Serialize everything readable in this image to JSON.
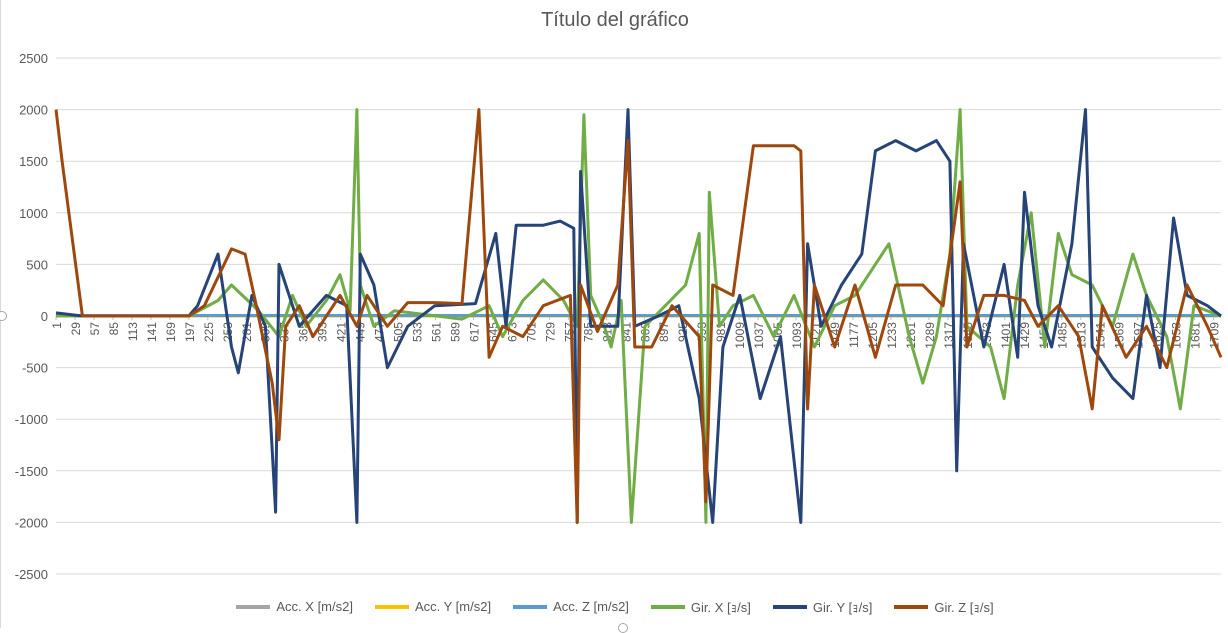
{
  "chart_data": {
    "type": "line",
    "title": "Título del gráfico",
    "xlabel": "",
    "ylabel": "",
    "ylim": [
      -2500,
      2500
    ],
    "y_ticks": [
      2500,
      2000,
      1500,
      1000,
      500,
      0,
      -500,
      -1000,
      -1500,
      -2000,
      -2500
    ],
    "x_range": [
      1,
      1720
    ],
    "x_tick_labels": [
      "1",
      "29",
      "57",
      "85",
      "113",
      "141",
      "169",
      "197",
      "225",
      "253",
      "281",
      "309",
      "337",
      "365",
      "393",
      "421",
      "449",
      "477",
      "505",
      "533",
      "561",
      "589",
      "617",
      "645",
      "673",
      "701",
      "729",
      "757",
      "785",
      "813",
      "841",
      "869",
      "897",
      "925",
      "953",
      "981",
      "1009",
      "1037",
      "1065",
      "1093",
      "1121",
      "1149",
      "1177",
      "1205",
      "1233",
      "1261",
      "1289",
      "1317",
      "1345",
      "1373",
      "1401",
      "1429",
      "1457",
      "1485",
      "1513",
      "1541",
      "1569",
      "1597",
      "1625",
      "1653",
      "1681",
      "1709"
    ],
    "grid": true,
    "legend_position": "bottom",
    "series": [
      {
        "name": "Acc. X [m/s2]",
        "color": "#a5a5a5",
        "points": [
          [
            1,
            0
          ],
          [
            1720,
            0
          ]
        ]
      },
      {
        "name": "Acc. Y [m/s2]",
        "color": "#ffc000",
        "points": [
          [
            1,
            0
          ],
          [
            1720,
            0
          ]
        ]
      },
      {
        "name": "Acc. Z [m/s2]",
        "color": "#5b9bd5",
        "points": [
          [
            1,
            5
          ],
          [
            1720,
            5
          ]
        ]
      },
      {
        "name": "Gir. X [ｮ/s]",
        "color": "#70ad47",
        "points": [
          [
            1,
            0
          ],
          [
            40,
            0
          ],
          [
            197,
            0
          ],
          [
            240,
            150
          ],
          [
            260,
            300
          ],
          [
            300,
            50
          ],
          [
            330,
            -200
          ],
          [
            350,
            200
          ],
          [
            370,
            -100
          ],
          [
            400,
            150
          ],
          [
            420,
            400
          ],
          [
            435,
            50
          ],
          [
            445,
            2000
          ],
          [
            450,
            300
          ],
          [
            470,
            -100
          ],
          [
            500,
            50
          ],
          [
            600,
            -30
          ],
          [
            640,
            100
          ],
          [
            660,
            -200
          ],
          [
            690,
            150
          ],
          [
            720,
            350
          ],
          [
            750,
            150
          ],
          [
            770,
            -100
          ],
          [
            780,
            1950
          ],
          [
            790,
            200
          ],
          [
            810,
            -100
          ],
          [
            820,
            -300
          ],
          [
            835,
            150
          ],
          [
            850,
            -2000
          ],
          [
            870,
            -100
          ],
          [
            900,
            100
          ],
          [
            930,
            300
          ],
          [
            950,
            800
          ],
          [
            960,
            -2000
          ],
          [
            965,
            1200
          ],
          [
            980,
            -100
          ],
          [
            1000,
            100
          ],
          [
            1030,
            200
          ],
          [
            1060,
            -200
          ],
          [
            1090,
            200
          ],
          [
            1120,
            -300
          ],
          [
            1150,
            100
          ],
          [
            1180,
            200
          ],
          [
            1200,
            400
          ],
          [
            1230,
            700
          ],
          [
            1260,
            -200
          ],
          [
            1280,
            -650
          ],
          [
            1300,
            -200
          ],
          [
            1320,
            600
          ],
          [
            1335,
            2000
          ],
          [
            1345,
            -100
          ],
          [
            1380,
            -300
          ],
          [
            1400,
            -800
          ],
          [
            1420,
            300
          ],
          [
            1440,
            1000
          ],
          [
            1460,
            -300
          ],
          [
            1480,
            800
          ],
          [
            1500,
            400
          ],
          [
            1530,
            300
          ],
          [
            1560,
            -100
          ],
          [
            1590,
            600
          ],
          [
            1610,
            200
          ],
          [
            1640,
            -200
          ],
          [
            1660,
            -900
          ],
          [
            1680,
            100
          ],
          [
            1720,
            0
          ]
        ]
      },
      {
        "name": "Gir. Y [ｮ/s]",
        "color": "#264478",
        "points": [
          [
            1,
            30
          ],
          [
            40,
            0
          ],
          [
            197,
            0
          ],
          [
            210,
            100
          ],
          [
            240,
            600
          ],
          [
            260,
            -300
          ],
          [
            270,
            -550
          ],
          [
            290,
            200
          ],
          [
            310,
            -100
          ],
          [
            325,
            -1900
          ],
          [
            330,
            500
          ],
          [
            360,
            -100
          ],
          [
            400,
            200
          ],
          [
            430,
            100
          ],
          [
            445,
            -2000
          ],
          [
            450,
            600
          ],
          [
            470,
            300
          ],
          [
            490,
            -500
          ],
          [
            520,
            -100
          ],
          [
            560,
            100
          ],
          [
            620,
            120
          ],
          [
            650,
            800
          ],
          [
            665,
            -100
          ],
          [
            680,
            880
          ],
          [
            720,
            880
          ],
          [
            745,
            920
          ],
          [
            765,
            850
          ],
          [
            770,
            -2000
          ],
          [
            775,
            1400
          ],
          [
            790,
            -100
          ],
          [
            830,
            -100
          ],
          [
            845,
            2000
          ],
          [
            855,
            -100
          ],
          [
            890,
            0
          ],
          [
            920,
            100
          ],
          [
            950,
            -800
          ],
          [
            970,
            -2000
          ],
          [
            985,
            -300
          ],
          [
            1010,
            200
          ],
          [
            1040,
            -800
          ],
          [
            1070,
            -200
          ],
          [
            1100,
            -2000
          ],
          [
            1110,
            700
          ],
          [
            1130,
            -100
          ],
          [
            1160,
            300
          ],
          [
            1190,
            600
          ],
          [
            1210,
            1600
          ],
          [
            1240,
            1700
          ],
          [
            1270,
            1600
          ],
          [
            1300,
            1700
          ],
          [
            1320,
            1500
          ],
          [
            1330,
            -1500
          ],
          [
            1340,
            700
          ],
          [
            1370,
            -300
          ],
          [
            1400,
            500
          ],
          [
            1420,
            -400
          ],
          [
            1430,
            1200
          ],
          [
            1450,
            100
          ],
          [
            1470,
            -300
          ],
          [
            1500,
            700
          ],
          [
            1520,
            2000
          ],
          [
            1530,
            -300
          ],
          [
            1560,
            -600
          ],
          [
            1590,
            -800
          ],
          [
            1610,
            200
          ],
          [
            1630,
            -500
          ],
          [
            1650,
            950
          ],
          [
            1670,
            200
          ],
          [
            1700,
            100
          ],
          [
            1720,
            0
          ]
        ]
      },
      {
        "name": "Gir. Z [ｮ/s]",
        "color": "#9e480e",
        "points": [
          [
            1,
            2000
          ],
          [
            10,
            1500
          ],
          [
            40,
            0
          ],
          [
            197,
            0
          ],
          [
            220,
            100
          ],
          [
            260,
            650
          ],
          [
            280,
            600
          ],
          [
            295,
            150
          ],
          [
            320,
            -650
          ],
          [
            330,
            -1200
          ],
          [
            340,
            -100
          ],
          [
            360,
            100
          ],
          [
            380,
            -200
          ],
          [
            420,
            200
          ],
          [
            445,
            -100
          ],
          [
            460,
            200
          ],
          [
            490,
            -100
          ],
          [
            520,
            130
          ],
          [
            560,
            130
          ],
          [
            600,
            120
          ],
          [
            625,
            2000
          ],
          [
            640,
            -400
          ],
          [
            660,
            -100
          ],
          [
            690,
            -200
          ],
          [
            720,
            100
          ],
          [
            760,
            200
          ],
          [
            770,
            -2000
          ],
          [
            775,
            300
          ],
          [
            800,
            -150
          ],
          [
            830,
            300
          ],
          [
            845,
            1700
          ],
          [
            855,
            -300
          ],
          [
            880,
            -300
          ],
          [
            910,
            100
          ],
          [
            950,
            -200
          ],
          [
            960,
            -1800
          ],
          [
            970,
            300
          ],
          [
            1000,
            200
          ],
          [
            1030,
            1650
          ],
          [
            1060,
            1650
          ],
          [
            1090,
            1650
          ],
          [
            1100,
            1600
          ],
          [
            1110,
            -900
          ],
          [
            1120,
            300
          ],
          [
            1150,
            -300
          ],
          [
            1180,
            300
          ],
          [
            1210,
            -400
          ],
          [
            1240,
            300
          ],
          [
            1280,
            300
          ],
          [
            1310,
            100
          ],
          [
            1335,
            1300
          ],
          [
            1345,
            -300
          ],
          [
            1370,
            200
          ],
          [
            1400,
            200
          ],
          [
            1430,
            150
          ],
          [
            1450,
            -100
          ],
          [
            1480,
            100
          ],
          [
            1510,
            -200
          ],
          [
            1530,
            -900
          ],
          [
            1545,
            100
          ],
          [
            1580,
            -400
          ],
          [
            1610,
            -100
          ],
          [
            1640,
            -500
          ],
          [
            1670,
            300
          ],
          [
            1700,
            -100
          ],
          [
            1720,
            -400
          ]
        ]
      }
    ]
  }
}
